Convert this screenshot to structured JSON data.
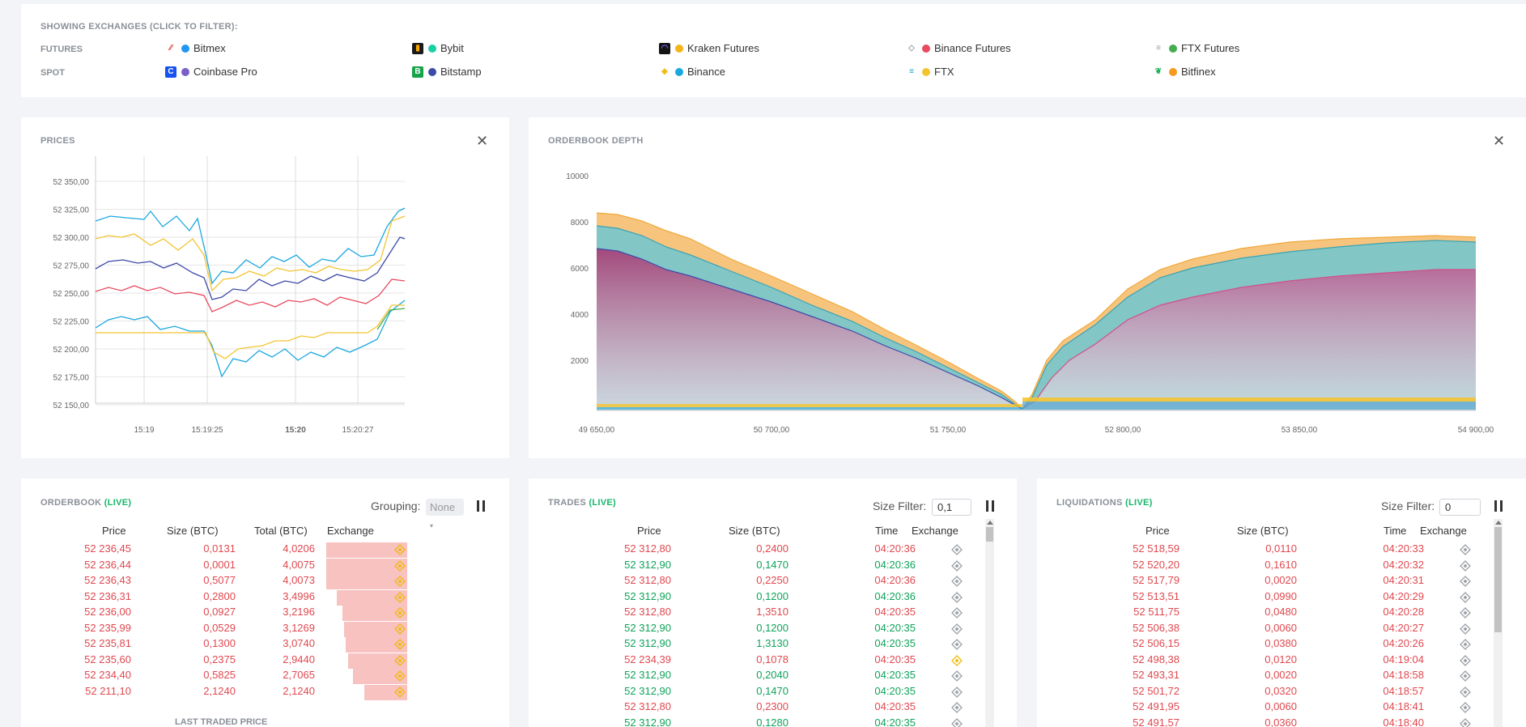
{
  "exchanges": {
    "title": "SHOWING EXCHANGES (CLICK TO FILTER):",
    "futures_label": "FUTURES",
    "spot_label": "SPOT",
    "futures": [
      {
        "name": "Bitmex",
        "icon": "bitmex-logo-icon",
        "color": "#2196f3"
      },
      {
        "name": "Bybit",
        "icon": "bybit-logo-icon",
        "color": "#1ad0a2"
      },
      {
        "name": "Kraken Futures",
        "icon": "kraken-logo-icon",
        "color": "#f6b31a"
      },
      {
        "name": "Binance Futures",
        "icon": "binance-futures-logo-icon",
        "color": "#e84a5f"
      },
      {
        "name": "FTX Futures",
        "icon": "ftx-futures-logo-icon",
        "color": "#43ad4f"
      }
    ],
    "spot": [
      {
        "name": "Coinbase Pro",
        "icon": "coinbase-logo-icon",
        "color": "#7b5fc7"
      },
      {
        "name": "Bitstamp",
        "icon": "bitstamp-logo-icon",
        "color": "#3c4aa8"
      },
      {
        "name": "Binance",
        "icon": "binance-logo-icon",
        "color": "#1aa7e0"
      },
      {
        "name": "FTX",
        "icon": "ftx-logo-icon",
        "color": "#f4c430"
      },
      {
        "name": "Bitfinex",
        "icon": "bitfinex-logo-icon",
        "color": "#f79a1e"
      }
    ]
  },
  "prices": {
    "title": "PRICES",
    "y_ticks": [
      "52 350,00",
      "52 325,00",
      "52 300,00",
      "52 275,00",
      "52 250,00",
      "52 225,00",
      "52 200,00",
      "52 175,00",
      "52 150,00"
    ],
    "x_ticks": [
      "15:19",
      "15:19:25",
      "15:20",
      "15:20:27"
    ]
  },
  "depth": {
    "title": "ORDERBOOK DEPTH",
    "y_ticks": [
      "10000",
      "8000",
      "6000",
      "4000",
      "2000"
    ],
    "x_ticks": [
      "49 650,00",
      "50 700,00",
      "51 750,00",
      "52 800,00",
      "53 850,00",
      "54 900,00"
    ]
  },
  "orderbook": {
    "title": "ORDERBOOK",
    "live": "(LIVE)",
    "grouping_label": "Grouping:",
    "grouping_value": "None",
    "headers": [
      "Price",
      "Size (BTC)",
      "Total (BTC)",
      "Exchange"
    ],
    "rows": [
      {
        "price": "52 236,45",
        "size": "0,0131",
        "total": "4,0206",
        "depth": 4.0206
      },
      {
        "price": "52 236,44",
        "size": "0,0001",
        "total": "4,0075",
        "depth": 4.0075
      },
      {
        "price": "52 236,43",
        "size": "0,5077",
        "total": "4,0073",
        "depth": 4.0073
      },
      {
        "price": "52 236,31",
        "size": "0,2800",
        "total": "3,4996",
        "depth": 3.4996
      },
      {
        "price": "52 236,00",
        "size": "0,0927",
        "total": "3,2196",
        "depth": 3.2196
      },
      {
        "price": "52 235,99",
        "size": "0,0529",
        "total": "3,1269",
        "depth": 3.1269
      },
      {
        "price": "52 235,81",
        "size": "0,1300",
        "total": "3,0740",
        "depth": 3.074
      },
      {
        "price": "52 235,60",
        "size": "0,2375",
        "total": "2,9440",
        "depth": 2.944
      },
      {
        "price": "52 234,40",
        "size": "0,5825",
        "total": "2,7065",
        "depth": 2.7065
      },
      {
        "price": "52 211,10",
        "size": "2,1240",
        "total": "2,1240",
        "depth": 2.124
      }
    ],
    "last_traded_label": "LAST TRADED PRICE"
  },
  "trades": {
    "title": "TRADES",
    "live": "(LIVE)",
    "size_filter_label": "Size Filter:",
    "size_filter_value": "0,1",
    "headers": [
      "Price",
      "Size (BTC)",
      "Time",
      "Exchange"
    ],
    "rows": [
      {
        "price": "52 312,80",
        "size": "0,2400",
        "time": "04:20:36",
        "side": "sell",
        "exchange": "binance-futures"
      },
      {
        "price": "52 312,90",
        "size": "0,1470",
        "time": "04:20:36",
        "side": "buy",
        "exchange": "binance-futures"
      },
      {
        "price": "52 312,80",
        "size": "0,2250",
        "time": "04:20:36",
        "side": "sell",
        "exchange": "binance-futures"
      },
      {
        "price": "52 312,90",
        "size": "0,1200",
        "time": "04:20:36",
        "side": "buy",
        "exchange": "binance-futures"
      },
      {
        "price": "52 312,80",
        "size": "1,3510",
        "time": "04:20:35",
        "side": "sell",
        "exchange": "binance-futures"
      },
      {
        "price": "52 312,90",
        "size": "0,1200",
        "time": "04:20:35",
        "side": "buy",
        "exchange": "binance-futures"
      },
      {
        "price": "52 312,90",
        "size": "1,3130",
        "time": "04:20:35",
        "side": "buy",
        "exchange": "binance-futures"
      },
      {
        "price": "52 234,39",
        "size": "0,1078",
        "time": "04:20:35",
        "side": "sell",
        "exchange": "binance"
      },
      {
        "price": "52 312,90",
        "size": "0,2040",
        "time": "04:20:35",
        "side": "buy",
        "exchange": "binance-futures"
      },
      {
        "price": "52 312,90",
        "size": "0,1470",
        "time": "04:20:35",
        "side": "buy",
        "exchange": "binance-futures"
      },
      {
        "price": "52 312,80",
        "size": "0,2300",
        "time": "04:20:35",
        "side": "sell",
        "exchange": "binance-futures"
      },
      {
        "price": "52 312,90",
        "size": "0,1280",
        "time": "04:20:35",
        "side": "buy",
        "exchange": "binance-futures"
      }
    ]
  },
  "liquidations": {
    "title": "LIQUIDATIONS",
    "live": "(LIVE)",
    "size_filter_label": "Size Filter:",
    "size_filter_value": "0",
    "headers": [
      "Price",
      "Size (BTC)",
      "Time",
      "Exchange"
    ],
    "rows": [
      {
        "price": "52 518,59",
        "size": "0,0110",
        "time": "04:20:33"
      },
      {
        "price": "52 520,20",
        "size": "0,1610",
        "time": "04:20:32"
      },
      {
        "price": "52 517,79",
        "size": "0,0020",
        "time": "04:20:31"
      },
      {
        "price": "52 513,51",
        "size": "0,0990",
        "time": "04:20:29"
      },
      {
        "price": "52 511,75",
        "size": "0,0480",
        "time": "04:20:28"
      },
      {
        "price": "52 506,38",
        "size": "0,0060",
        "time": "04:20:27"
      },
      {
        "price": "52 506,15",
        "size": "0,0380",
        "time": "04:20:26"
      },
      {
        "price": "52 498,38",
        "size": "0,0120",
        "time": "04:19:04"
      },
      {
        "price": "52 493,31",
        "size": "0,0020",
        "time": "04:18:58"
      },
      {
        "price": "52 501,72",
        "size": "0,0320",
        "time": "04:18:57"
      },
      {
        "price": "52 491,95",
        "size": "0,0060",
        "time": "04:18:41"
      },
      {
        "price": "52 491,57",
        "size": "0,0360",
        "time": "04:18:40"
      }
    ]
  }
}
